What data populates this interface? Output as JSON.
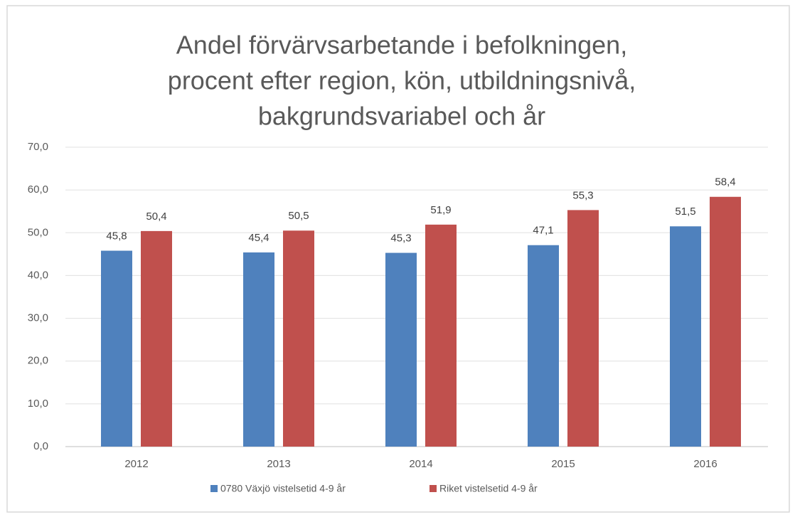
{
  "chart_data": {
    "type": "bar",
    "title": [
      "Andel förvärvsarbetande i befolkningen,",
      "procent efter region, kön, utbildningsnivå,",
      "bakgrundsvariabel och år"
    ],
    "categories": [
      "2012",
      "2013",
      "2014",
      "2015",
      "2016"
    ],
    "series": [
      {
        "name": "0780 Växjö vistelsetid 4-9 år",
        "color": "#4f81bd",
        "values": [
          45.8,
          45.4,
          45.3,
          47.1,
          51.5
        ],
        "value_labels": [
          "45,8",
          "45,4",
          "45,3",
          "47,1",
          "51,5"
        ]
      },
      {
        "name": "Riket vistelsetid 4-9 år",
        "color": "#c0504d",
        "values": [
          50.4,
          50.5,
          51.9,
          55.3,
          58.4
        ],
        "value_labels": [
          "50,4",
          "50,5",
          "51,9",
          "55,3",
          "58,4"
        ]
      }
    ],
    "ylim": [
      0,
      70
    ],
    "yticks": [
      {
        "value": 0,
        "label": "0,0"
      },
      {
        "value": 10,
        "label": "10,0"
      },
      {
        "value": 20,
        "label": "20,0"
      },
      {
        "value": 30,
        "label": "30,0"
      },
      {
        "value": 40,
        "label": "40,0"
      },
      {
        "value": 50,
        "label": "50,0"
      },
      {
        "value": 60,
        "label": "60,0"
      },
      {
        "value": 70,
        "label": "70,0"
      }
    ],
    "grid": true,
    "legend": "bottom"
  }
}
